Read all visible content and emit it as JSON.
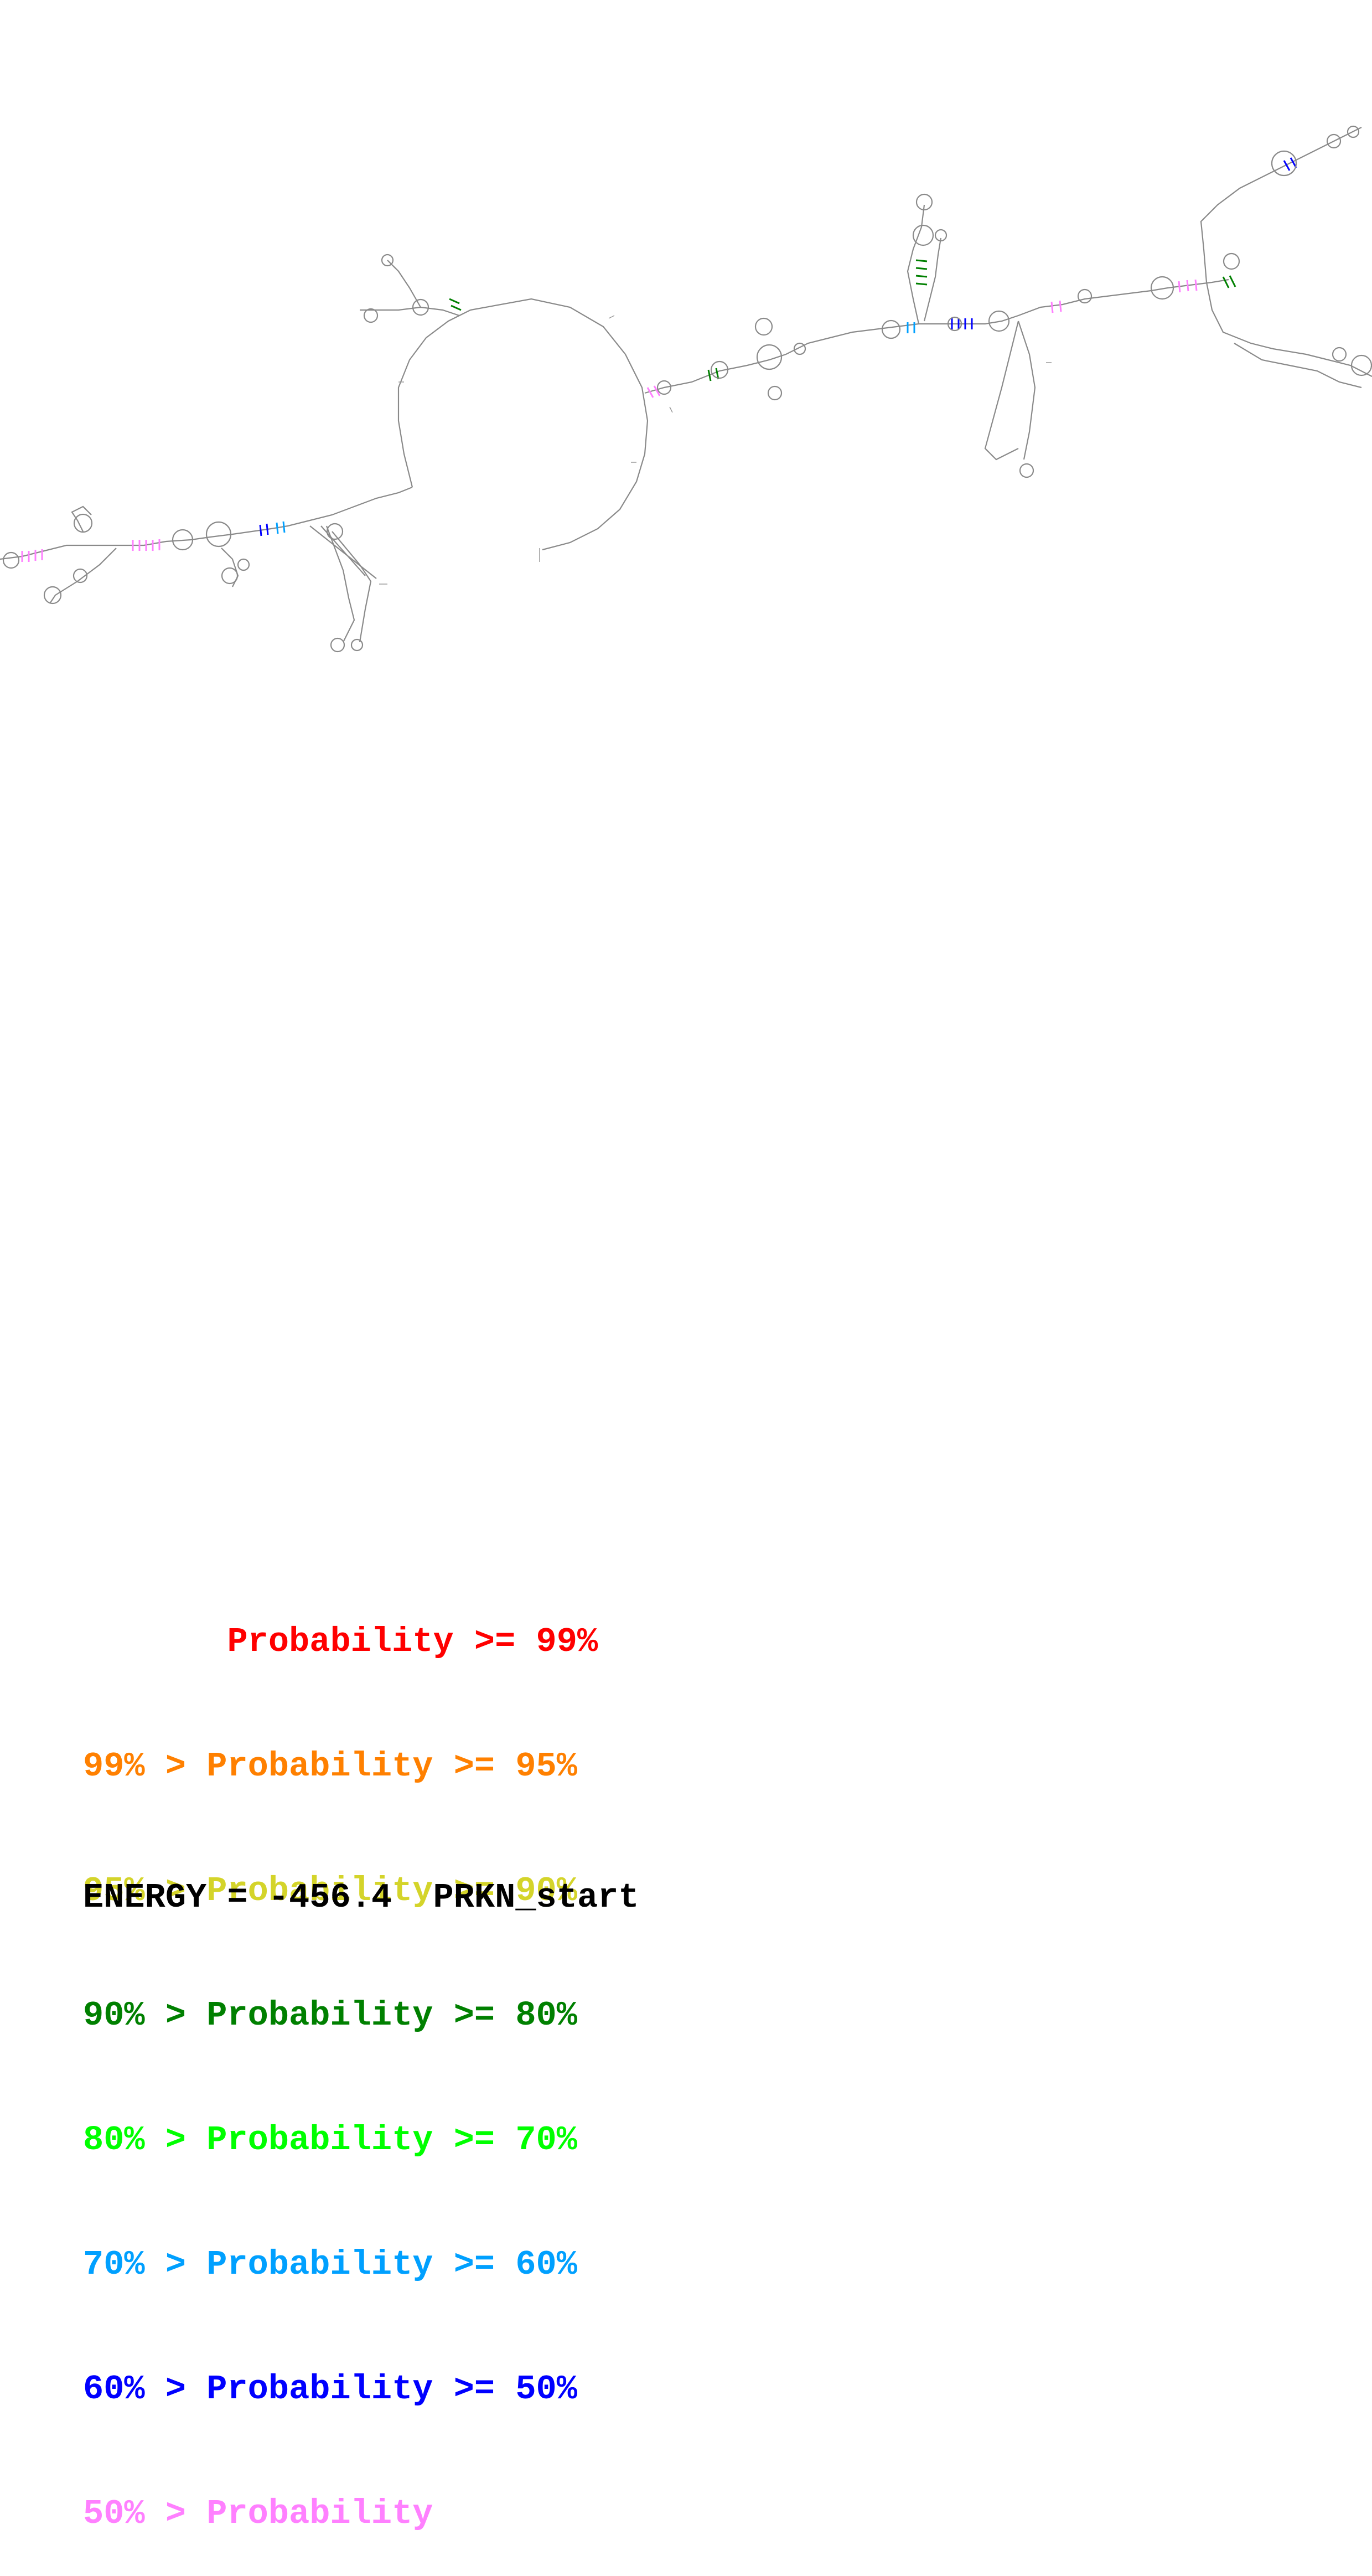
{
  "legend": [
    {
      "text": "       Probability >= 99%",
      "color": "#ff0000"
    },
    {
      "text": "99% > Probability >= 95%",
      "color": "#ff8000"
    },
    {
      "text": "95% > Probability >= 90%",
      "color": "#d4d42a"
    },
    {
      "text": "90% > Probability >= 80%",
      "color": "#008000"
    },
    {
      "text": "80% > Probability >= 70%",
      "color": "#00ff00"
    },
    {
      "text": "70% > Probability >= 60%",
      "color": "#00a0ff"
    },
    {
      "text": "60% > Probability >= 50%",
      "color": "#0000ff"
    },
    {
      "text": "50% > Probability",
      "color": "#ff80ff"
    }
  ],
  "footer": {
    "energy": "ENERGY = -456.4  PRKN_start"
  },
  "colors": {
    "backbone": "#7a7a7a",
    "pair_low": "#ff80ff",
    "pair_mid": "#0000ff",
    "pair_60": "#00a0ff",
    "pair_80": "#008000"
  }
}
